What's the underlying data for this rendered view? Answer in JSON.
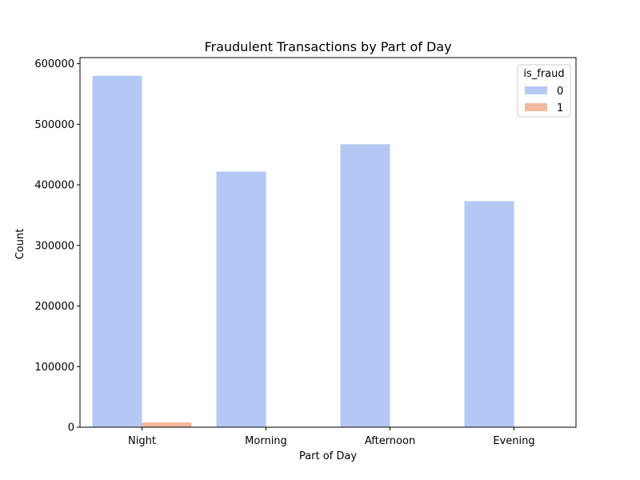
{
  "chart_data": {
    "type": "bar",
    "title": "Fraudulent Transactions by Part of Day",
    "xlabel": "Part of Day",
    "ylabel": "Count",
    "categories": [
      "Night",
      "Morning",
      "Afternoon",
      "Evening"
    ],
    "series": [
      {
        "name": "0",
        "values": [
          580000,
          422000,
          467000,
          373000
        ],
        "color": "#b3c9f4"
      },
      {
        "name": "1",
        "values": [
          7800,
          550,
          500,
          600
        ],
        "color": "#f3b99e"
      }
    ],
    "ylim": [
      0,
      610000
    ],
    "yticks": [
      0,
      100000,
      200000,
      300000,
      400000,
      500000,
      600000
    ],
    "legend": {
      "title": "is_fraud",
      "placement": "top-right"
    },
    "grid": false
  }
}
